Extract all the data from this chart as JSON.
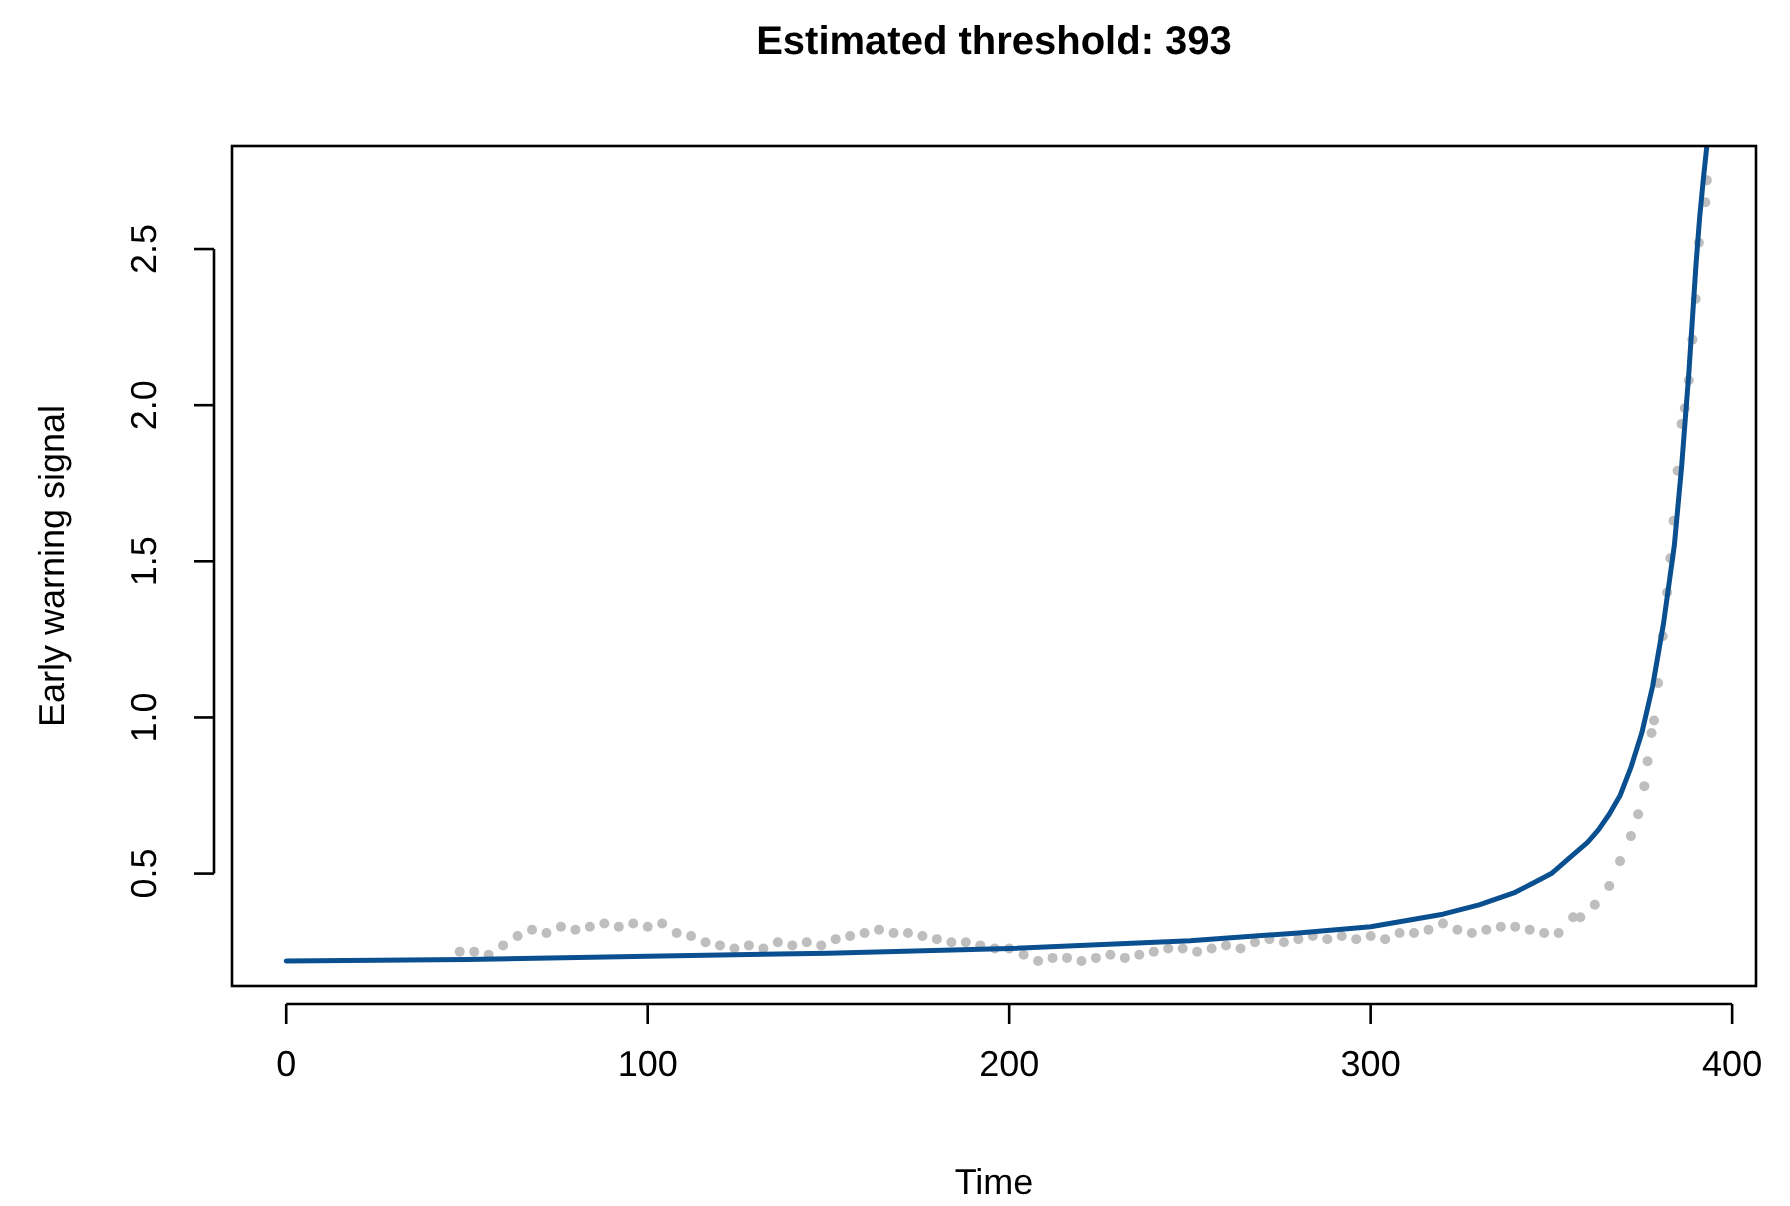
{
  "chart_data": {
    "type": "line",
    "title": "Estimated threshold: 393",
    "xlabel": "Time",
    "ylabel": "Early warning signal",
    "xlim": [
      -15,
      406.6
    ],
    "ylim": [
      0.14,
      2.83
    ],
    "xticks": [
      0,
      100,
      200,
      300,
      400
    ],
    "yticks": [
      0.5,
      {
        "value": 1,
        "label": "1.0"
      },
      1.5,
      {
        "value": 2,
        "label": "2.0"
      },
      2.5
    ],
    "grid": false,
    "series": [
      {
        "type": "scatter",
        "color": "#bebebe",
        "marker": "circle",
        "x": [
          48,
          52,
          56,
          60,
          64,
          68,
          72,
          76,
          80,
          84,
          88,
          92,
          96,
          100,
          104,
          108,
          112,
          116,
          120,
          124,
          128,
          132,
          136,
          140,
          144,
          148,
          152,
          156,
          160,
          164,
          168,
          172,
          176,
          180,
          184,
          188,
          192,
          196,
          200,
          204,
          208,
          212,
          216,
          220,
          224,
          228,
          232,
          236,
          240,
          244,
          248,
          252,
          256,
          260,
          264,
          268,
          272,
          276,
          280,
          284,
          288,
          292,
          296,
          300,
          304,
          308,
          312,
          316,
          320,
          324,
          328,
          332,
          336,
          340,
          344,
          348,
          352,
          356,
          358,
          362,
          366,
          369,
          372,
          374,
          375.7,
          376.6,
          377.7,
          378.4,
          379.5,
          380.8,
          382,
          382.9,
          383.8,
          384.9,
          386,
          386.9,
          388,
          389,
          389.9,
          390.8,
          392.6,
          393
        ],
        "values": [
          0.25,
          0.25,
          0.24,
          0.27,
          0.3,
          0.32,
          0.31,
          0.33,
          0.32,
          0.33,
          0.34,
          0.33,
          0.34,
          0.33,
          0.34,
          0.31,
          0.3,
          0.28,
          0.27,
          0.26,
          0.27,
          0.26,
          0.28,
          0.27,
          0.28,
          0.27,
          0.29,
          0.3,
          0.31,
          0.32,
          0.31,
          0.31,
          0.3,
          0.29,
          0.28,
          0.28,
          0.27,
          0.26,
          0.26,
          0.24,
          0.22,
          0.23,
          0.23,
          0.22,
          0.23,
          0.24,
          0.23,
          0.24,
          0.25,
          0.26,
          0.26,
          0.25,
          0.26,
          0.27,
          0.26,
          0.28,
          0.29,
          0.28,
          0.29,
          0.3,
          0.29,
          0.3,
          0.29,
          0.3,
          0.29,
          0.31,
          0.31,
          0.32,
          0.34,
          0.32,
          0.31,
          0.32,
          0.33,
          0.33,
          0.32,
          0.31,
          0.31,
          0.36,
          0.36,
          0.4,
          0.46,
          0.54,
          0.62,
          0.69,
          0.78,
          0.86,
          0.95,
          0.99,
          1.11,
          1.26,
          1.4,
          1.51,
          1.63,
          1.79,
          1.94,
          1.99,
          2.08,
          2.21,
          2.34,
          2.52,
          2.65,
          2.72
        ]
      },
      {
        "type": "line",
        "color": "#0a4f8f",
        "line_style": "solid",
        "marker": "none",
        "x": [
          0,
          50,
          100,
          150,
          200,
          250,
          280,
          300,
          320,
          330,
          340,
          345,
          350,
          355,
          360,
          363,
          366,
          369,
          372,
          375,
          378,
          381,
          384,
          386,
          388,
          390,
          391,
          392,
          393
        ],
        "values": [
          0.22,
          0.225,
          0.235,
          0.245,
          0.26,
          0.285,
          0.31,
          0.33,
          0.37,
          0.4,
          0.44,
          0.47,
          0.5,
          0.55,
          0.6,
          0.64,
          0.69,
          0.75,
          0.84,
          0.95,
          1.1,
          1.3,
          1.55,
          1.8,
          2.1,
          2.45,
          2.6,
          2.72,
          2.83
        ]
      }
    ]
  }
}
